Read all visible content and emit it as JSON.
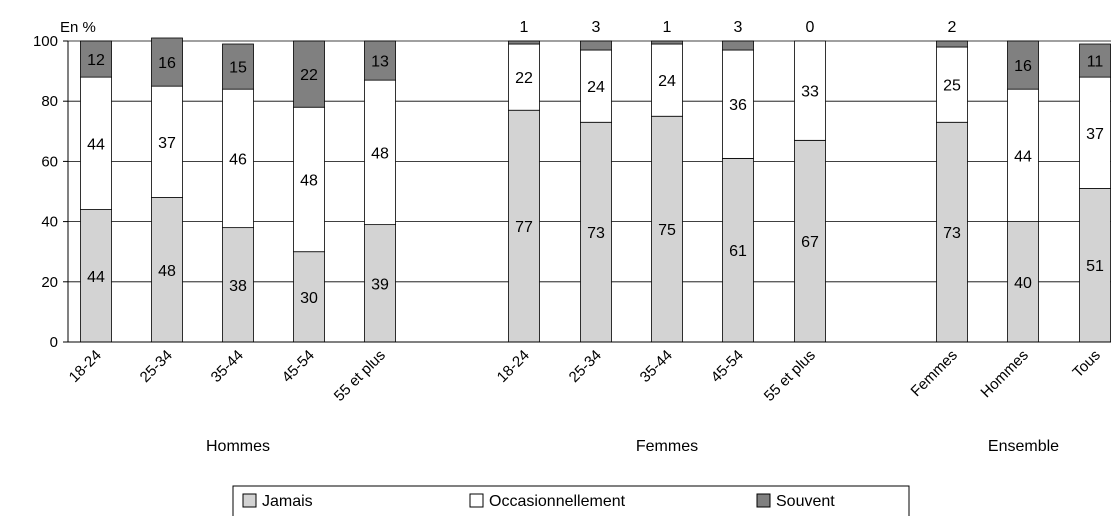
{
  "chart_data": {
    "type": "bar",
    "stacked": true,
    "ylabel": "En %",
    "ylim": [
      0,
      100
    ],
    "yticks": [
      0,
      20,
      40,
      60,
      80,
      100
    ],
    "grid": true,
    "legend_position": "bottom",
    "categories": [
      "18-24",
      "25-34",
      "35-44",
      "45-54",
      "55 et plus",
      "18-24",
      "25-34",
      "35-44",
      "45-54",
      "55 et plus",
      "Femmes",
      "Hommes",
      "Tous"
    ],
    "groups": [
      {
        "label": "Hommes",
        "start": 0,
        "count": 5
      },
      {
        "label": "Femmes",
        "start": 5,
        "count": 5
      },
      {
        "label": "Ensemble",
        "start": 10,
        "count": 3
      }
    ],
    "series": [
      {
        "name": "Jamais",
        "color": "#d3d3d3",
        "values": [
          44,
          48,
          38,
          30,
          39,
          77,
          73,
          75,
          61,
          67,
          73,
          40,
          51
        ]
      },
      {
        "name": "Occasionnellement",
        "color": "#ffffff",
        "values": [
          44,
          37,
          46,
          48,
          48,
          22,
          24,
          24,
          36,
          33,
          25,
          44,
          37
        ]
      },
      {
        "name": "Souvent",
        "color": "#808080",
        "values": [
          12,
          16,
          15,
          22,
          13,
          1,
          3,
          1,
          3,
          0,
          2,
          16,
          11
        ]
      }
    ],
    "souvent_labels_above": [
      false,
      false,
      false,
      false,
      false,
      true,
      true,
      true,
      true,
      true,
      true,
      false,
      false
    ]
  }
}
